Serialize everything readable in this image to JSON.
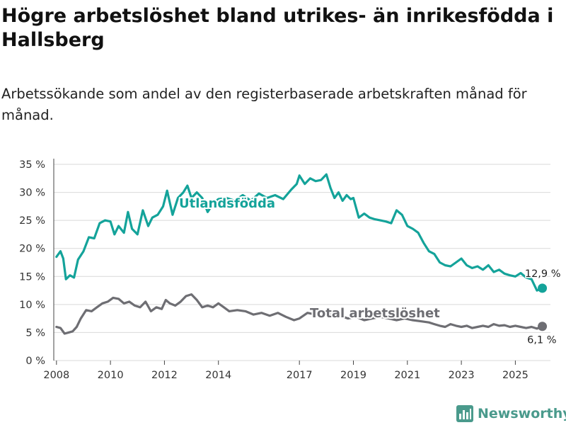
{
  "header": {
    "title": "Högre arbetslöshet bland utrikes- än inrikesfödda i Hallsberg",
    "subtitle": "Arbetssökande som andel av den registerbaserade arbetskraften månad för månad."
  },
  "brand": {
    "name": "Newsworthy",
    "icon": "bar-chart-logo-icon",
    "color": "#4a9a8c"
  },
  "chart_data": {
    "type": "line",
    "title": "Högre arbetslöshet bland utrikes- än inrikesfödda i Hallsberg",
    "subtitle": "Arbetssökande som andel av den registerbaserade arbetskraften månad för månad.",
    "xlabel": "",
    "ylabel": "",
    "xlim": [
      2007.9,
      2026.3
    ],
    "ylim": [
      0,
      35
    ],
    "yticks": [
      0,
      5,
      10,
      15,
      20,
      25,
      30,
      35
    ],
    "ytick_labels": [
      "0 %",
      "5 %",
      "10 %",
      "15 %",
      "20 %",
      "25 %",
      "30 %",
      "35 %"
    ],
    "xticks": [
      2008,
      2010,
      2012,
      2014,
      2017,
      2019,
      2021,
      2023,
      2025
    ],
    "xtick_labels": [
      "2008",
      "2010",
      "2012",
      "2014",
      "2017",
      "2019",
      "2021",
      "2023",
      "2025"
    ],
    "grid": true,
    "series": [
      {
        "name": "Utlandsfödda",
        "color": "#14a39a",
        "end_label": "12,9 %",
        "x": [
          2008.0,
          2008.15,
          2008.25,
          2008.35,
          2008.5,
          2008.65,
          2008.8,
          2009.0,
          2009.2,
          2009.4,
          2009.6,
          2009.8,
          2010.0,
          2010.15,
          2010.3,
          2010.5,
          2010.65,
          2010.8,
          2011.0,
          2011.2,
          2011.4,
          2011.55,
          2011.75,
          2011.95,
          2012.1,
          2012.3,
          2012.5,
          2012.7,
          2012.85,
          2013.0,
          2013.2,
          2013.4,
          2013.6,
          2013.8,
          2014.0,
          2014.3,
          2014.6,
          2014.9,
          2015.2,
          2015.5,
          2015.8,
          2016.1,
          2016.4,
          2016.7,
          2016.9,
          2017.0,
          2017.2,
          2017.4,
          2017.6,
          2017.8,
          2018.0,
          2018.15,
          2018.3,
          2018.45,
          2018.6,
          2018.75,
          2018.9,
          2019.0,
          2019.2,
          2019.4,
          2019.6,
          2019.8,
          2020.0,
          2020.2,
          2020.4,
          2020.6,
          2020.8,
          2021.0,
          2021.2,
          2021.4,
          2021.6,
          2021.8,
          2022.0,
          2022.2,
          2022.4,
          2022.6,
          2022.8,
          2023.0,
          2023.2,
          2023.4,
          2023.6,
          2023.8,
          2024.0,
          2024.2,
          2024.4,
          2024.6,
          2024.8,
          2025.0,
          2025.2,
          2025.4,
          2025.6,
          2025.8,
          2026.0
        ],
        "values": [
          18.5,
          19.5,
          18.2,
          14.5,
          15.2,
          14.8,
          18.0,
          19.5,
          22.0,
          21.8,
          24.5,
          25.0,
          24.8,
          22.5,
          24.0,
          22.8,
          26.5,
          23.5,
          22.5,
          26.8,
          24.0,
          25.5,
          26.0,
          27.5,
          30.3,
          26.0,
          29.0,
          30.0,
          31.2,
          29.0,
          30.0,
          29.0,
          26.5,
          28.0,
          28.8,
          29.0,
          28.5,
          29.5,
          28.5,
          29.8,
          29.0,
          29.5,
          28.8,
          30.5,
          31.5,
          33.0,
          31.5,
          32.5,
          32.0,
          32.2,
          33.2,
          30.8,
          29.0,
          30.0,
          28.5,
          29.5,
          28.8,
          29.0,
          25.5,
          26.2,
          25.5,
          25.2,
          25.0,
          24.8,
          24.5,
          26.8,
          26.0,
          24.0,
          23.5,
          22.8,
          21.0,
          19.5,
          19.0,
          17.5,
          17.0,
          16.8,
          17.5,
          18.2,
          17.0,
          16.5,
          16.8,
          16.2,
          17.0,
          15.8,
          16.2,
          15.5,
          15.2,
          15.0,
          15.6,
          14.8,
          14.5,
          12.5,
          12.9
        ]
      },
      {
        "name": "Total arbetslöshet",
        "color": "#6e6e73",
        "end_label": "6,1 %",
        "x": [
          2008.0,
          2008.15,
          2008.3,
          2008.45,
          2008.6,
          2008.75,
          2008.9,
          2009.1,
          2009.3,
          2009.5,
          2009.7,
          2009.9,
          2010.1,
          2010.3,
          2010.5,
          2010.7,
          2010.9,
          2011.1,
          2011.3,
          2011.5,
          2011.7,
          2011.9,
          2012.05,
          2012.2,
          2012.4,
          2012.6,
          2012.8,
          2013.0,
          2013.2,
          2013.4,
          2013.6,
          2013.8,
          2014.0,
          2014.2,
          2014.4,
          2014.7,
          2015.0,
          2015.3,
          2015.6,
          2015.9,
          2016.2,
          2016.5,
          2016.8,
          2017.0,
          2017.3,
          2017.6,
          2017.9,
          2018.2,
          2018.5,
          2018.8,
          2019.1,
          2019.4,
          2019.7,
          2020.0,
          2020.3,
          2020.6,
          2020.9,
          2021.2,
          2021.5,
          2021.8,
          2022.0,
          2022.2,
          2022.4,
          2022.6,
          2022.8,
          2023.0,
          2023.2,
          2023.4,
          2023.6,
          2023.8,
          2024.0,
          2024.2,
          2024.4,
          2024.6,
          2024.8,
          2025.0,
          2025.2,
          2025.4,
          2025.6,
          2025.8,
          2026.0
        ],
        "values": [
          6.0,
          5.8,
          4.8,
          5.0,
          5.2,
          6.0,
          7.5,
          9.0,
          8.8,
          9.5,
          10.2,
          10.5,
          11.2,
          11.0,
          10.2,
          10.5,
          9.8,
          9.5,
          10.5,
          8.8,
          9.5,
          9.2,
          10.8,
          10.2,
          9.8,
          10.5,
          11.5,
          11.8,
          10.8,
          9.5,
          9.8,
          9.5,
          10.2,
          9.5,
          8.8,
          9.0,
          8.8,
          8.2,
          8.5,
          8.0,
          8.5,
          7.8,
          7.2,
          7.5,
          8.5,
          8.2,
          8.0,
          8.2,
          8.0,
          7.5,
          7.8,
          7.2,
          7.5,
          7.8,
          7.5,
          7.2,
          7.5,
          7.2,
          7.0,
          6.8,
          6.5,
          6.2,
          6.0,
          6.5,
          6.2,
          6.0,
          6.2,
          5.8,
          6.0,
          6.2,
          6.0,
          6.5,
          6.2,
          6.3,
          6.0,
          6.2,
          6.0,
          5.8,
          6.0,
          5.7,
          6.1
        ]
      }
    ]
  }
}
